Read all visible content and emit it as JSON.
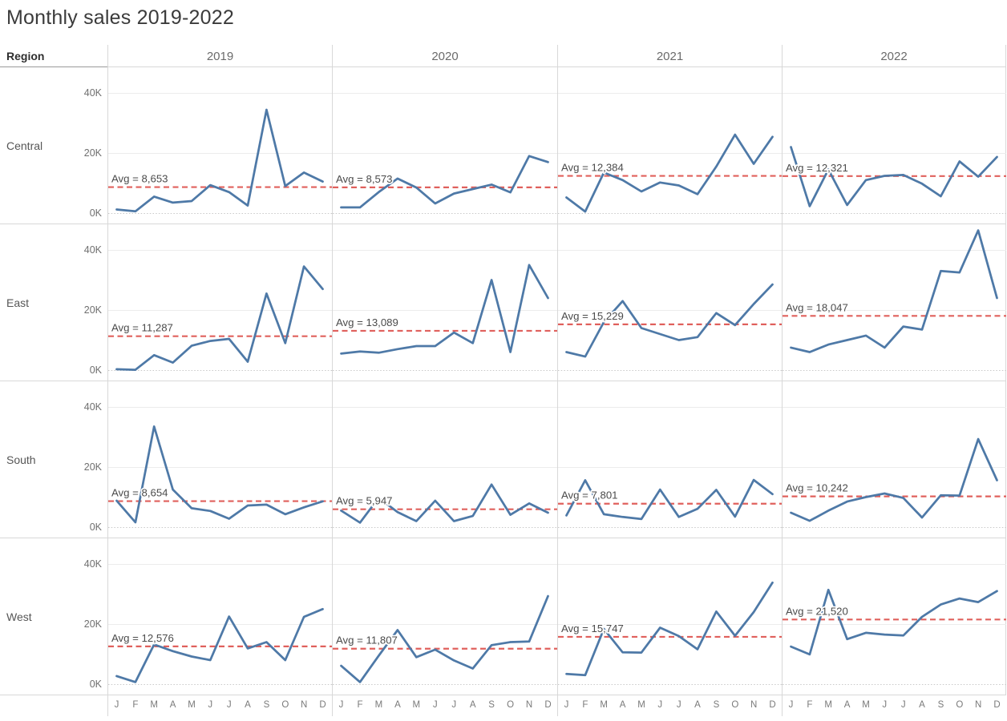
{
  "title": "Monthly sales 2019-2022",
  "header": {
    "region_label": "Region",
    "years": [
      "2019",
      "2020",
      "2021",
      "2022"
    ]
  },
  "y_tick_labels": [
    "40K",
    "20K",
    "0K"
  ],
  "month_letters": [
    "J",
    "F",
    "M",
    "A",
    "M",
    "J",
    "J",
    "A",
    "S",
    "O",
    "N",
    "D"
  ],
  "colors": {
    "line": "#4e79a7",
    "avg_line": "#e0605c",
    "avg_label_text": "#4b4b4b",
    "grid_border": "#d8d8d8",
    "gridline": "#ececec",
    "zero_gridline": "#c9c9c9",
    "title_text": "#3b3b3b",
    "header_text": "#6b6b6b",
    "region_text": "#565656",
    "tick_text": "#6f6f6f",
    "month_text": "#7a7a7a"
  },
  "chart_data": {
    "type": "line",
    "layout": "small-multiples (4 region rows x 4 year columns)",
    "title": "Monthly sales 2019-2022",
    "unit_note": "values in thousands of dollars (K), estimated from pixels",
    "x_categories": [
      "Jan",
      "Feb",
      "Mar",
      "Apr",
      "May",
      "Jun",
      "Jul",
      "Aug",
      "Sep",
      "Oct",
      "Nov",
      "Dec"
    ],
    "x_tick_labels": [
      "J",
      "F",
      "M",
      "A",
      "M",
      "J",
      "J",
      "A",
      "S",
      "O",
      "N",
      "D"
    ],
    "ylim": [
      0,
      52
    ],
    "y_ticks": [
      {
        "label": "0K",
        "value": 0
      },
      {
        "label": "20K",
        "value": 20
      },
      {
        "label": "40K",
        "value": 40
      }
    ],
    "grid": "horizontal gridlines at 0K (dotted), 20K, 40K",
    "col_years": [
      "2019",
      "2020",
      "2021",
      "2022"
    ],
    "row_regions": [
      "Central",
      "East",
      "South",
      "West"
    ],
    "reference_line": "red dashed per-panel average with label",
    "rows": [
      {
        "region": "Central",
        "panels": [
          {
            "year": "2019",
            "avg_label": "Avg = 8,653",
            "avg_k": 8.653,
            "values_k": [
              1.2,
              0.6,
              5.5,
              3.5,
              4.0,
              9.3,
              7.0,
              2.5,
              34.4,
              9.0,
              13.5,
              10.5
            ]
          },
          {
            "year": "2020",
            "avg_label": "Avg = 8,573",
            "avg_k": 8.573,
            "values_k": [
              1.9,
              1.9,
              7.0,
              11.5,
              8.5,
              3.2,
              6.5,
              8.0,
              9.5,
              6.9,
              19.0,
              17.0
            ]
          },
          {
            "year": "2021",
            "avg_label": "Avg = 12,384",
            "avg_k": 12.384,
            "values_k": [
              5.2,
              0.5,
              13.5,
              11.0,
              7.2,
              10.2,
              9.2,
              6.3,
              15.5,
              26.1,
              16.4,
              25.4
            ]
          },
          {
            "year": "2022",
            "avg_label": "Avg = 12,321",
            "avg_k": 12.321,
            "values_k": [
              22.0,
              2.3,
              14.5,
              2.7,
              11.0,
              12.4,
              12.7,
              9.8,
              5.6,
              17.2,
              12.1,
              18.7
            ]
          }
        ]
      },
      {
        "region": "East",
        "panels": [
          {
            "year": "2019",
            "avg_label": "Avg = 11,287",
            "avg_k": 11.287,
            "values_k": [
              0.3,
              0.1,
              5.0,
              2.5,
              8.1,
              9.7,
              10.4,
              2.8,
              25.5,
              9.0,
              34.5,
              27.0
            ]
          },
          {
            "year": "2020",
            "avg_label": "Avg = 13,089",
            "avg_k": 13.089,
            "values_k": [
              5.5,
              6.2,
              5.8,
              7.0,
              8.0,
              8.0,
              12.5,
              9.0,
              30.0,
              6.0,
              35.0,
              24.0
            ]
          },
          {
            "year": "2021",
            "avg_label": "Avg = 15,229",
            "avg_k": 15.229,
            "values_k": [
              6.0,
              4.5,
              16.0,
              23.0,
              14.0,
              12.0,
              10.0,
              11.0,
              19.0,
              15.0,
              22.0,
              28.5
            ]
          },
          {
            "year": "2022",
            "avg_label": "Avg = 18,047",
            "avg_k": 18.047,
            "values_k": [
              7.5,
              6.0,
              8.5,
              10.0,
              11.5,
              7.5,
              14.5,
              13.5,
              33.0,
              32.5,
              46.5,
              24.0
            ]
          }
        ]
      },
      {
        "region": "South",
        "panels": [
          {
            "year": "2019",
            "avg_label": "Avg = 8,654",
            "avg_k": 8.654,
            "values_k": [
              8.8,
              1.6,
              33.5,
              12.5,
              6.3,
              5.4,
              2.8,
              7.2,
              7.5,
              4.3,
              6.6,
              8.6
            ]
          },
          {
            "year": "2020",
            "avg_label": "Avg = 5,947",
            "avg_k": 5.947,
            "values_k": [
              5.5,
              1.5,
              9.8,
              5.0,
              2.0,
              8.8,
              2.0,
              3.7,
              14.2,
              4.1,
              7.9,
              4.8
            ]
          },
          {
            "year": "2021",
            "avg_label": "Avg = 7,801",
            "avg_k": 7.801,
            "values_k": [
              3.9,
              15.6,
              4.3,
              3.4,
              2.7,
              12.5,
              3.4,
              6.1,
              12.4,
              3.5,
              15.7,
              11.0
            ]
          },
          {
            "year": "2022",
            "avg_label": "Avg = 10,242",
            "avg_k": 10.242,
            "values_k": [
              4.8,
              2.1,
              5.5,
              8.5,
              10.0,
              11.2,
              9.7,
              3.2,
              10.6,
              10.5,
              29.3,
              15.6
            ]
          }
        ]
      },
      {
        "region": "West",
        "panels": [
          {
            "year": "2019",
            "avg_label": "Avg = 12,576",
            "avg_k": 12.576,
            "values_k": [
              2.7,
              0.7,
              13.2,
              11.0,
              9.2,
              8.0,
              22.5,
              11.9,
              14.0,
              8.0,
              22.4,
              25.0
            ]
          },
          {
            "year": "2020",
            "avg_label": "Avg = 11,807",
            "avg_k": 11.807,
            "values_k": [
              6.1,
              0.7,
              9.5,
              18.0,
              9.0,
              11.5,
              7.9,
              5.2,
              13.0,
              14.0,
              14.2,
              29.3
            ]
          },
          {
            "year": "2021",
            "avg_label": "Avg = 15,747",
            "avg_k": 15.747,
            "values_k": [
              3.4,
              3.0,
              18.4,
              10.6,
              10.5,
              18.8,
              16.0,
              11.6,
              24.2,
              16.1,
              24.0,
              33.8
            ]
          },
          {
            "year": "2022",
            "avg_label": "Avg = 21,520",
            "avg_k": 21.52,
            "values_k": [
              12.5,
              9.9,
              31.4,
              15.0,
              17.1,
              16.5,
              16.2,
              22.4,
              26.5,
              28.5,
              27.3,
              31.0
            ]
          }
        ]
      }
    ]
  }
}
